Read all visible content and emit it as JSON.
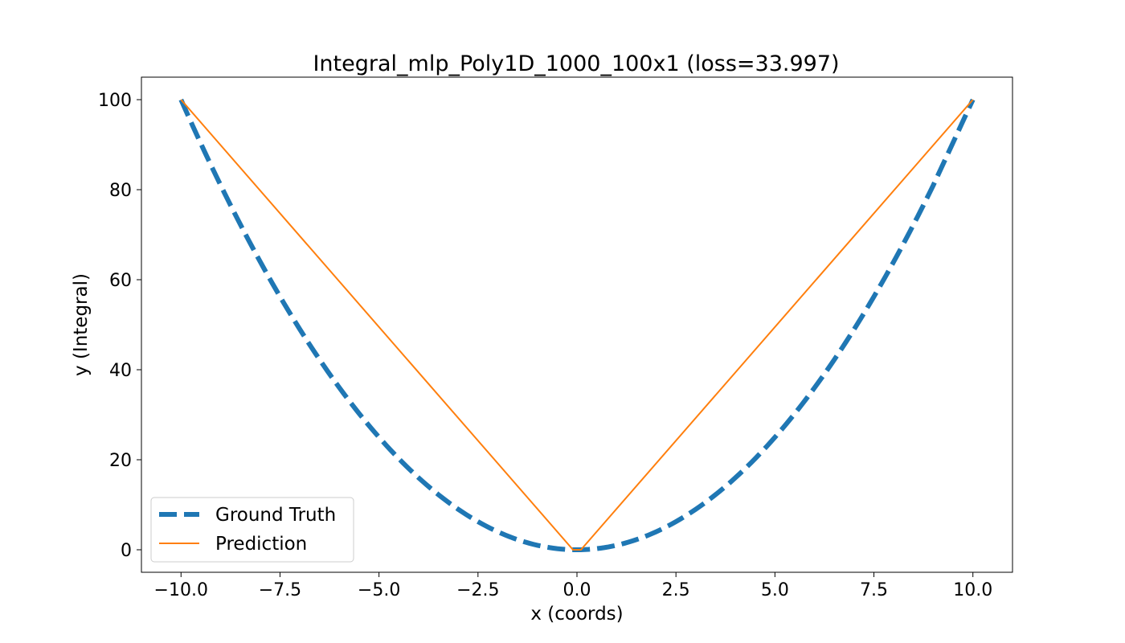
{
  "chart_data": {
    "type": "line",
    "title": "Integral_mlp_Poly1D_1000_100x1 (loss=33.997)",
    "xlabel": "x (coords)",
    "ylabel": "y (Integral)",
    "xlim": [
      -11.0,
      11.0
    ],
    "ylim": [
      -5.0,
      105.0
    ],
    "grid": false,
    "legend_position": "lower-left",
    "x_ticks": [
      -10.0,
      -7.5,
      -5.0,
      -2.5,
      0.0,
      2.5,
      5.0,
      7.5,
      10.0
    ],
    "x_tick_labels": [
      "−10.0",
      "−7.5",
      "−5.0",
      "−2.5",
      "0.0",
      "2.5",
      "5.0",
      "7.5",
      "10.0"
    ],
    "y_ticks": [
      0,
      20,
      40,
      60,
      80,
      100
    ],
    "y_tick_labels": [
      "0",
      "20",
      "40",
      "60",
      "80",
      "100"
    ],
    "series": [
      {
        "name": "Ground Truth",
        "color": "#1f77b4",
        "style": "dashed",
        "x": [
          -10,
          -9,
          -8,
          -7,
          -6,
          -5,
          -4,
          -3,
          -2,
          -1,
          0,
          1,
          2,
          3,
          4,
          5,
          6,
          7,
          8,
          9,
          10
        ],
        "y": [
          100,
          81,
          64,
          49,
          36,
          25,
          16,
          9,
          4,
          1,
          0,
          1,
          4,
          9,
          16,
          25,
          36,
          49,
          64,
          81,
          100
        ]
      },
      {
        "name": "Prediction",
        "color": "#ff7f0e",
        "style": "solid",
        "x": [
          -10.0,
          -0.1,
          0.1,
          10.0
        ],
        "y": [
          100.0,
          0.0,
          0.0,
          100.0
        ]
      }
    ]
  }
}
